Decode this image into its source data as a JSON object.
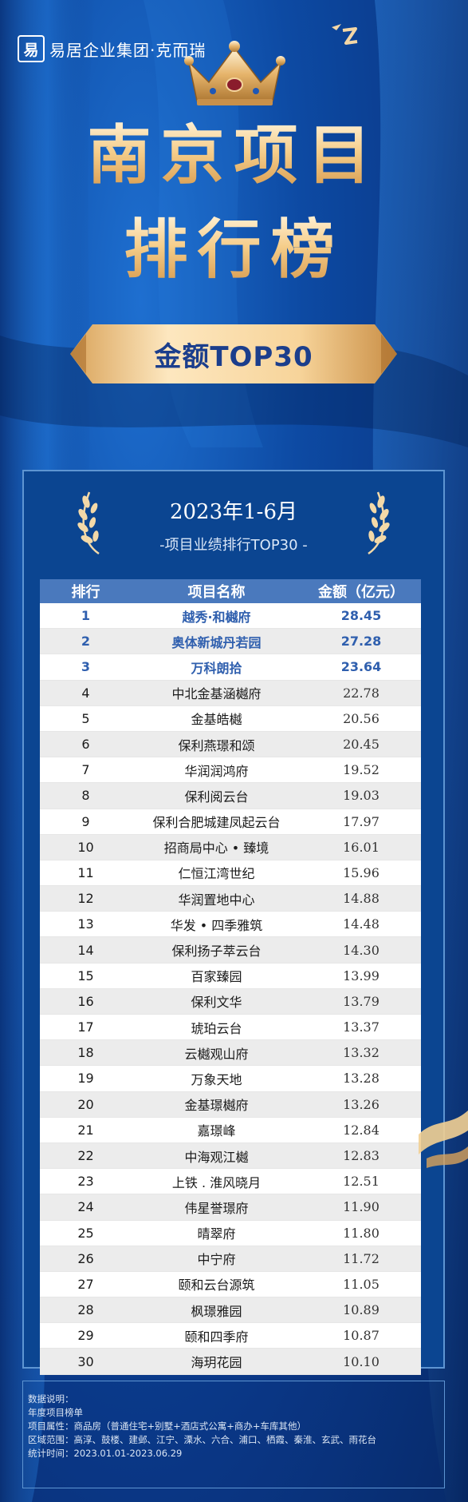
{
  "brand": {
    "logo_char": "易",
    "name": "易居企业集团·克而瑞"
  },
  "title": {
    "line1": "南京项目",
    "line2": "排行榜",
    "ribbon": "金额TOP30"
  },
  "panel": {
    "period": "2023年1-6月",
    "subtitle": "-项目业绩排行TOP30 -"
  },
  "table": {
    "headers": [
      "排行",
      "项目名称",
      "金额（亿元）"
    ],
    "rows": [
      {
        "rank": "1",
        "name": "越秀·和樾府",
        "amount": "28.45"
      },
      {
        "rank": "2",
        "name": "奥体新城丹若园",
        "amount": "27.28"
      },
      {
        "rank": "3",
        "name": "万科朗拾",
        "amount": "23.64"
      },
      {
        "rank": "4",
        "name": "中北金基涵樾府",
        "amount": "22.78"
      },
      {
        "rank": "5",
        "name": "金基皓樾",
        "amount": "20.56"
      },
      {
        "rank": "6",
        "name": "保利燕璟和颂",
        "amount": "20.45"
      },
      {
        "rank": "7",
        "name": "华润润鸿府",
        "amount": "19.52"
      },
      {
        "rank": "8",
        "name": "保利阅云台",
        "amount": "19.03"
      },
      {
        "rank": "9",
        "name": "保利合肥城建凤起云台",
        "amount": "17.97"
      },
      {
        "rank": "10",
        "name": "招商局中心 • 臻境",
        "amount": "16.01"
      },
      {
        "rank": "11",
        "name": "仁恒江湾世纪",
        "amount": "15.96"
      },
      {
        "rank": "12",
        "name": "华润置地中心",
        "amount": "14.88"
      },
      {
        "rank": "13",
        "name": "华发 • 四季雅筑",
        "amount": "14.48"
      },
      {
        "rank": "14",
        "name": "保利扬子萃云台",
        "amount": "14.30"
      },
      {
        "rank": "15",
        "name": "百家臻园",
        "amount": "13.99"
      },
      {
        "rank": "16",
        "name": "保利文华",
        "amount": "13.79"
      },
      {
        "rank": "17",
        "name": "琥珀云台",
        "amount": "13.37"
      },
      {
        "rank": "18",
        "name": "云樾观山府",
        "amount": "13.32"
      },
      {
        "rank": "19",
        "name": "万象天地",
        "amount": "13.28"
      },
      {
        "rank": "20",
        "name": "金基璟樾府",
        "amount": "13.26"
      },
      {
        "rank": "21",
        "name": "嘉璟峰",
        "amount": "12.84"
      },
      {
        "rank": "22",
        "name": "中海观江樾",
        "amount": "12.83"
      },
      {
        "rank": "23",
        "name": "上铁 . 淮风晓月",
        "amount": "12.51"
      },
      {
        "rank": "24",
        "name": "伟星誉璟府",
        "amount": "11.90"
      },
      {
        "rank": "25",
        "name": "晴翠府",
        "amount": "11.80"
      },
      {
        "rank": "26",
        "name": "中宁府",
        "amount": "11.72"
      },
      {
        "rank": "27",
        "name": "颐和云台源筑",
        "amount": "11.05"
      },
      {
        "rank": "28",
        "name": "枫璟雅园",
        "amount": "10.89"
      },
      {
        "rank": "29",
        "name": "颐和四季府",
        "amount": "10.87"
      },
      {
        "rank": "30",
        "name": "海玥花园",
        "amount": "10.10"
      }
    ]
  },
  "notes": {
    "heading": "数据说明：",
    "line1": "年度项目榜单",
    "line2": "项目属性：商品房（普通住宅+别墅+酒店式公寓+商办+车库其他）",
    "line3": "区域范围：高淳、鼓楼、建邺、江宁、溧水、六合、浦口、栖霞、秦淮、玄武、雨花台",
    "line4": "统计时间：2023.01.01-2023.06.29"
  },
  "colors": {
    "background": "#0d4aa3",
    "gold": "#f5cd8a",
    "table_header": "#4a79bd",
    "top_rank_text": "#2f5fae"
  }
}
